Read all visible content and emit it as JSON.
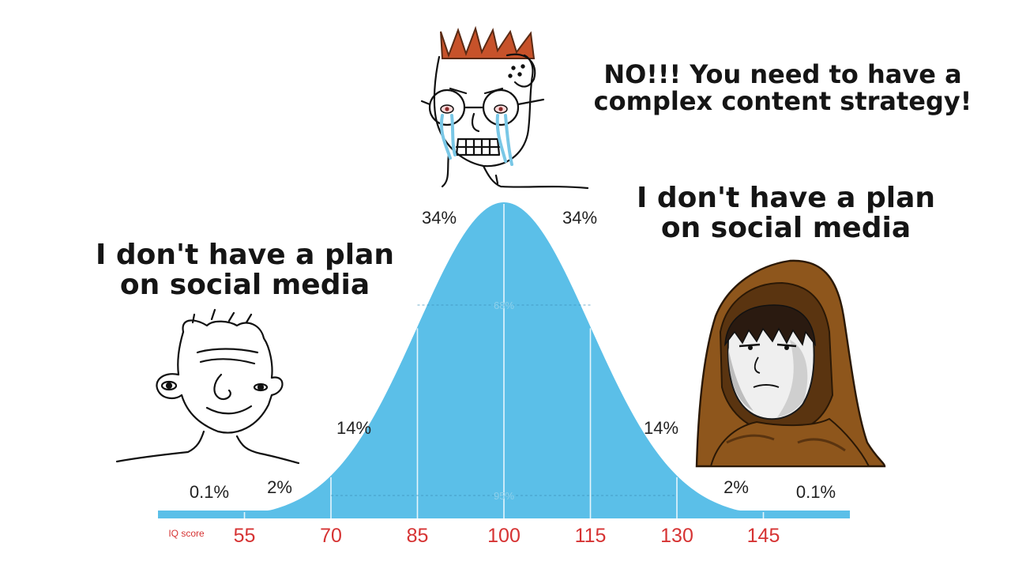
{
  "captions": {
    "left": [
      "I don't have a plan",
      "on social media"
    ],
    "middle": [
      "NO!!! You need to have a",
      "complex content strategy!"
    ],
    "right": [
      "I don't have a plan",
      "on social media"
    ]
  },
  "chart_data": {
    "type": "area",
    "title": "",
    "xlabel": "IQ score",
    "ylabel": "",
    "distribution": "normal",
    "mean": 100,
    "sd": 15,
    "xlim": [
      40,
      160
    ],
    "x_ticks": [
      55,
      70,
      85,
      100,
      115,
      130,
      145
    ],
    "region_boundaries": [
      55,
      70,
      85,
      100,
      115,
      130,
      145
    ],
    "region_labels": [
      "0.1%",
      "2%",
      "14%",
      "34%",
      "34%",
      "14%",
      "2%",
      "0.1%"
    ],
    "bracket_labels": [
      "68%",
      "95%"
    ],
    "fill_color": "#5bbfe8",
    "tick_color": "#d63333"
  },
  "characters": [
    {
      "name": "wojak-low-iq",
      "position": "left"
    },
    {
      "name": "wojak-crying-nerd",
      "position": "middle"
    },
    {
      "name": "hooded-wojak",
      "position": "right"
    }
  ]
}
